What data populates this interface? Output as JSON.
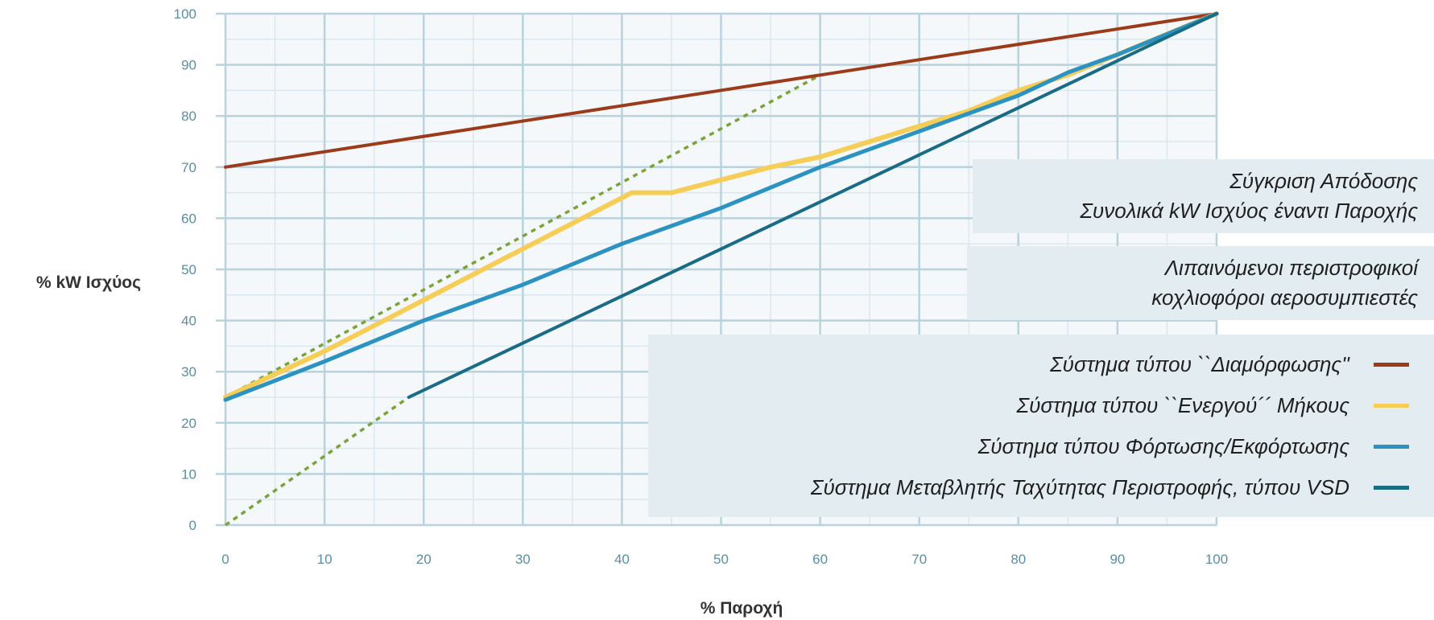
{
  "chart_data": {
    "type": "line",
    "title": "Σύγκριση Απόδοσης",
    "subtitle": "Συνολικά kW Ισχύος έναντι Παροχής",
    "subtitle2": "Λιπαινόμενοι περιστροφικοί κοχλιοφόροι αεροσυμπιεστές",
    "subtitle2_lines": [
      "Λιπαινόμενοι περιστροφικοί",
      "κοχλιοφόροι αεροσυμπιεστές"
    ],
    "xlabel": "% Παροχή",
    "ylabel": "% kW Ισχύος",
    "xlim": [
      0,
      100
    ],
    "ylim": [
      0,
      100
    ],
    "xticks": [
      0,
      10,
      20,
      30,
      40,
      50,
      60,
      70,
      80,
      90,
      100
    ],
    "yticks": [
      0,
      10,
      20,
      30,
      40,
      50,
      60,
      70,
      80,
      90,
      100
    ],
    "grid": true,
    "legend_position": "right",
    "series": [
      {
        "name": "Σύστημα τύπου ``Διαμόρφωσης''",
        "color": "#9b3b1a",
        "x": [
          0,
          100
        ],
        "y": [
          70,
          100
        ]
      },
      {
        "name": "Σύστημα τύπου ``Ενεργού´´ Μήκους",
        "color": "#f6cd57",
        "x": [
          0,
          10,
          20,
          30,
          40,
          41,
          45,
          55,
          60,
          65,
          70,
          75,
          80,
          85,
          90,
          95,
          100
        ],
        "y": [
          25,
          34,
          44,
          54,
          64,
          65,
          65,
          70,
          72,
          75,
          78,
          81,
          85,
          88,
          92,
          96,
          100
        ]
      },
      {
        "name": "Σύστημα τύπου Φόρτωσης/Εκφόρτωσης",
        "color": "#2b92c1",
        "x": [
          0,
          10,
          20,
          30,
          40,
          50,
          60,
          70,
          80,
          85,
          90,
          95,
          100
        ],
        "y": [
          24.5,
          32,
          40,
          47,
          55,
          62,
          70,
          77,
          84,
          88.5,
          92,
          96,
          100
        ]
      },
      {
        "name": "Σύστημα Μεταβλητής Ταχύτητας Περιστροφής, τύπου VSD",
        "color": "#1a6c86",
        "x": [
          18.5,
          100
        ],
        "y": [
          25,
          100
        ]
      }
    ],
    "reference_lines": [
      {
        "color": "#7ba33a",
        "style": "dashed",
        "x": [
          0,
          60
        ],
        "y": [
          25,
          88
        ]
      },
      {
        "color": "#7ba33a",
        "style": "dashed",
        "x": [
          0,
          18.5
        ],
        "y": [
          0,
          25
        ]
      }
    ],
    "legend_labels": [
      "Σύστημα τύπου ``Διαμόρφωσης''",
      "Σύστημα τύπου ``Ενεργού´´ Μήκους",
      "Σύστημα τύπου Φόρτωσης/Εκφόρτωσης",
      "Σύστημα Μεταβλητής Ταχύτητας Περιστροφής, τύπου VSD"
    ],
    "colors": {
      "plot_background": "#f4f8fa",
      "major_grid": "#b9d2dd",
      "minor_grid": "#dbe7ec",
      "panel": "#e3edf1",
      "tick_text": "#5b8ea3"
    }
  }
}
